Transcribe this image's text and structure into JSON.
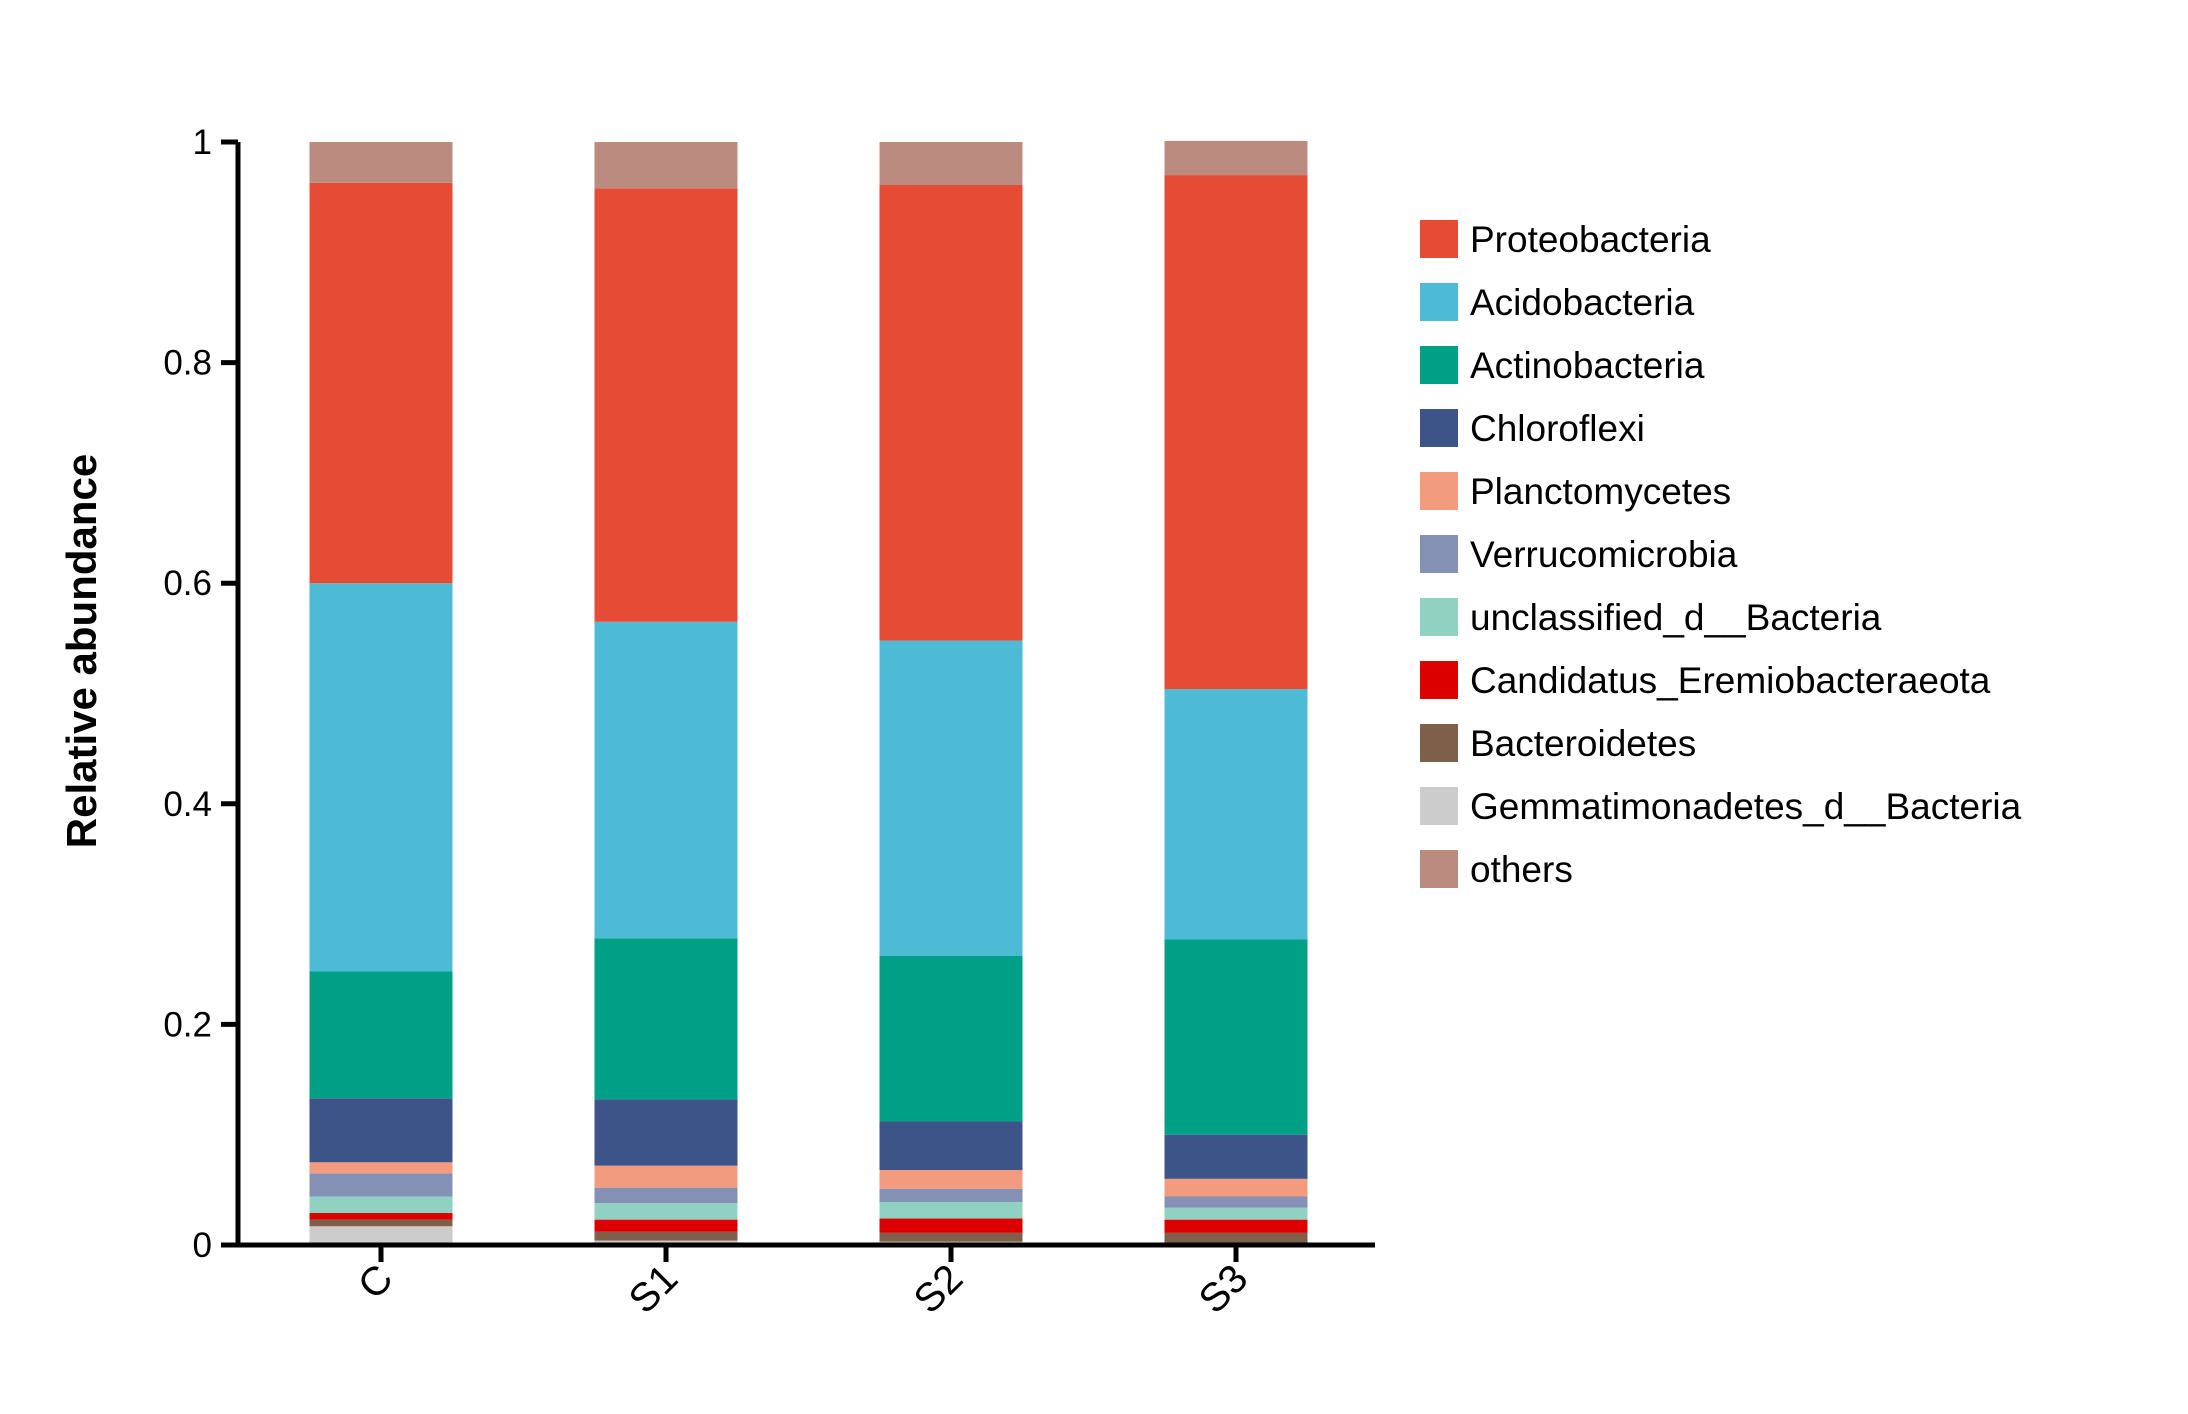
{
  "chart_data": {
    "type": "bar",
    "stacked": true,
    "title": "",
    "xlabel": "",
    "ylabel": "Relative abundance",
    "ylim": [
      0,
      1
    ],
    "yticks": [
      "0",
      "0.2",
      "0.4",
      "0.6",
      "0.8",
      "1"
    ],
    "categories": [
      "C",
      "S1",
      "S2",
      "S3"
    ],
    "legend_position": "right",
    "grid": false,
    "series": [
      {
        "name": "Gemmatimonadetes_d__Bacteria",
        "color": "#CCCCCC",
        "values": [
          0.017,
          0.004,
          0.003,
          0.002
        ]
      },
      {
        "name": "Bacteroidetes",
        "color": "#7E604A",
        "values": [
          0.006,
          0.008,
          0.008,
          0.009
        ]
      },
      {
        "name": "Candidatus_Eremiobacteraeota",
        "color": "#DC0000",
        "values": [
          0.006,
          0.011,
          0.013,
          0.012
        ]
      },
      {
        "name": "unclassified_d__Bacteria",
        "color": "#91D1C2",
        "values": [
          0.015,
          0.015,
          0.015,
          0.011
        ]
      },
      {
        "name": "Verrucomicrobia",
        "color": "#8491B4",
        "values": [
          0.021,
          0.014,
          0.012,
          0.01
        ]
      },
      {
        "name": "Planctomycetes",
        "color": "#F39B7F",
        "values": [
          0.01,
          0.02,
          0.017,
          0.016
        ]
      },
      {
        "name": "Chloroflexi",
        "color": "#3C5488",
        "values": [
          0.058,
          0.06,
          0.044,
          0.04
        ]
      },
      {
        "name": "Actinobacteria",
        "color": "#00A087",
        "values": [
          0.115,
          0.146,
          0.15,
          0.177
        ]
      },
      {
        "name": "Acidobacteria",
        "color": "#4DBBD5",
        "values": [
          0.352,
          0.287,
          0.286,
          0.227
        ]
      },
      {
        "name": "Proteobacteria",
        "color": "#E64B35",
        "values": [
          0.363,
          0.393,
          0.413,
          0.466
        ]
      },
      {
        "name": "others",
        "color": "#BC8B80",
        "values": [
          0.037,
          0.042,
          0.039,
          0.031
        ]
      }
    ],
    "legend_order": [
      "Proteobacteria",
      "Acidobacteria",
      "Actinobacteria",
      "Chloroflexi",
      "Planctomycetes",
      "Verrucomicrobia",
      "unclassified_d__Bacteria",
      "Candidatus_Eremiobacteraeota",
      "Bacteroidetes",
      "Gemmatimonadetes_d__Bacteria",
      "others"
    ]
  }
}
